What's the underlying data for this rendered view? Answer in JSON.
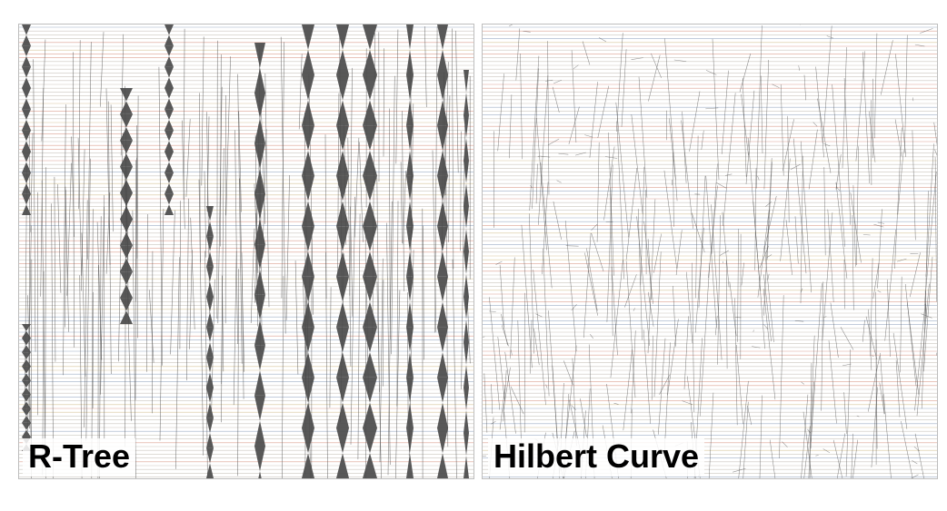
{
  "panels": [
    {
      "label": "R-Tree",
      "style": "dense dark gray crossing bands over horizontal striped grid"
    },
    {
      "label": "Hilbert Curve",
      "style": "sparse scattered crossing lines over horizontal striped grid"
    }
  ],
  "colors": {
    "line_base": "#b9b3a9",
    "line_red": "#d0806e",
    "line_blue": "#7f94b3",
    "line_gold": "#c9b27a",
    "crossing": "#4a4a4a",
    "frame": "#bdbdbd"
  }
}
